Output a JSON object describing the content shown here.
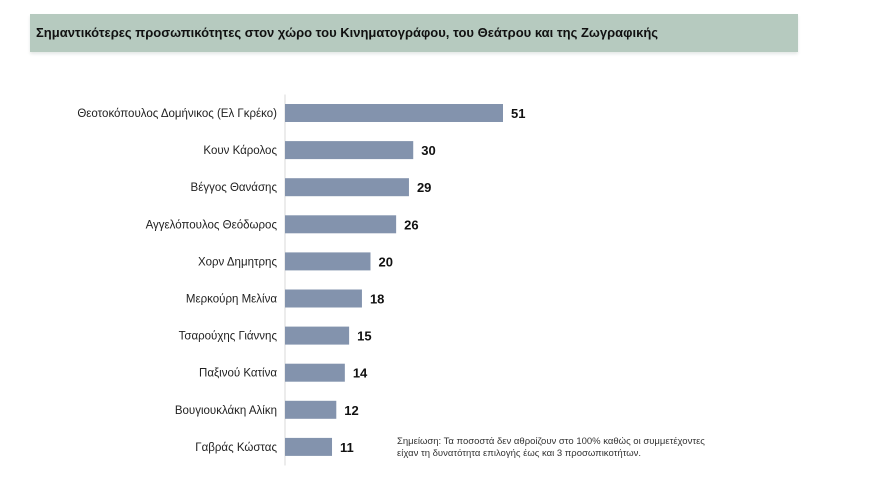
{
  "chart_data": {
    "type": "bar",
    "orientation": "horizontal",
    "title": "Σημαντικότερες προσωπικότητες  στον χώρο του Κινηματογράφου, του Θεάτρου και της Ζωγραφικής",
    "categories": [
      "Θεοτοκόπουλος Δομήνικος (Ελ Γκρέκο)",
      "Κουν Κάρολος",
      "Βέγγος Θανάσης",
      "Αγγελόπουλος Θεόδωρος",
      "Χορν Δημητρης",
      "Μερκούρη Μελίνα",
      "Τσαρούχης Γιάννης",
      "Παξινού Κατίνα",
      "Βουγιουκλάκη Αλίκη",
      "Γαβράς Κώστας"
    ],
    "values": [
      51,
      30,
      29,
      26,
      20,
      18,
      15,
      14,
      12,
      11
    ],
    "xlim": [
      0,
      51
    ],
    "grid": false,
    "bar_color": "#8393ad",
    "title_background": "#b6cabf",
    "note": [
      "Σημείωση: Τα ποσοστά δεν αθροίζουν στο 100% καθώς οι συμμετέχοντες",
      "είχαν τη δυνατότητα επιλογής έως και 3 προσωπικοτήτων."
    ]
  }
}
